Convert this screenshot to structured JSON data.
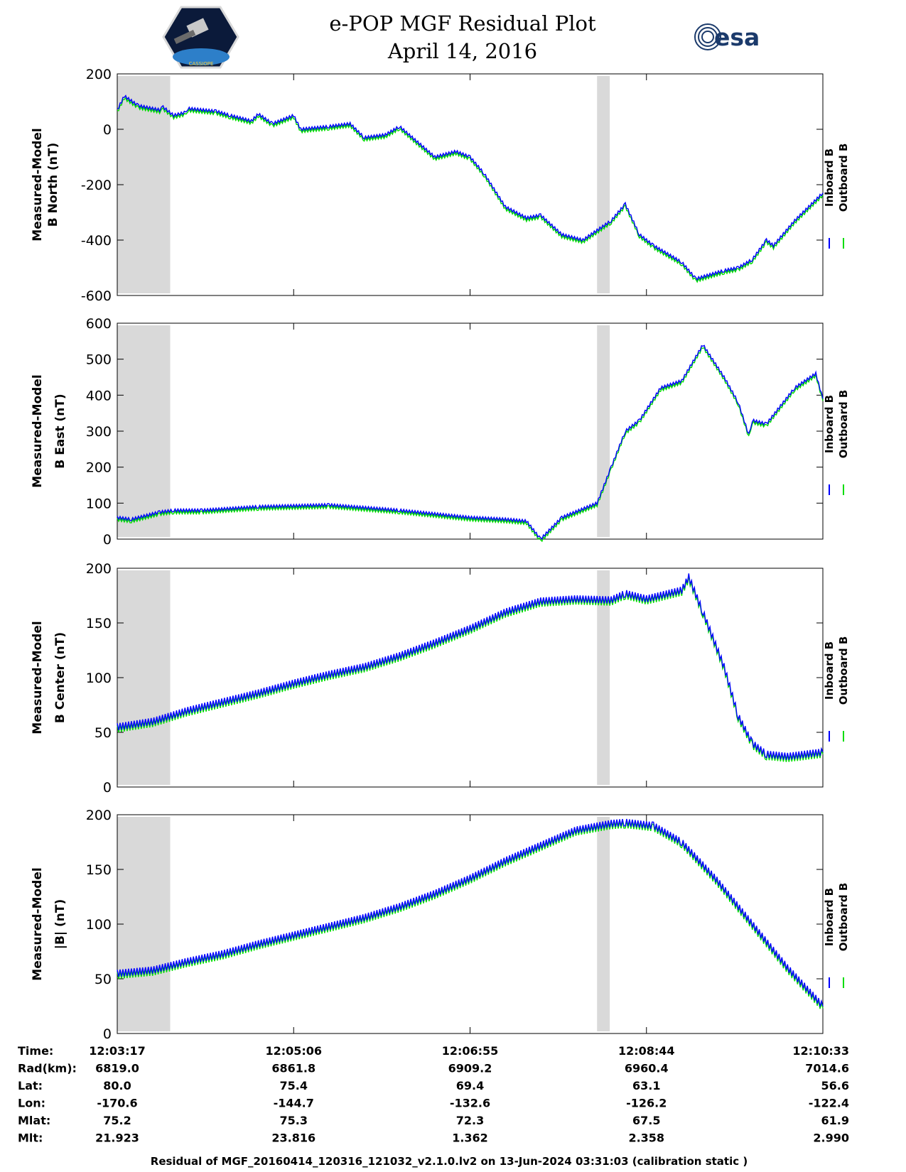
{
  "header": {
    "title_line1": "e-POP MGF Residual Plot",
    "title_line2": "April 14, 2016",
    "logo_left": "CASSIOPE",
    "logo_right": "esa"
  },
  "colors": {
    "inboard": "#0000ff",
    "outboard": "#00dd00",
    "shade": "#d9d9d9"
  },
  "chart_data": [
    {
      "type": "line",
      "ylabel_line1": "Measured-Model",
      "ylabel_line2": "B North (nT)",
      "ylim": [
        -600,
        200
      ],
      "yticks": [
        -600,
        -400,
        -200,
        0,
        200
      ],
      "legend": [
        "Inboard B",
        "Outboard B"
      ],
      "series": [
        {
          "name": "Inboard B",
          "x": [
            0,
            0.01,
            0.03,
            0.06,
            0.065,
            0.08,
            0.095,
            0.1,
            0.14,
            0.16,
            0.19,
            0.2,
            0.22,
            0.25,
            0.26,
            0.3,
            0.33,
            0.35,
            0.38,
            0.4,
            0.45,
            0.48,
            0.5,
            0.52,
            0.55,
            0.58,
            0.6,
            0.63,
            0.66,
            0.7,
            0.72,
            0.74,
            0.76,
            0.8,
            0.82,
            0.86,
            0.88,
            0.9,
            0.92,
            0.93,
            0.96,
            1.0
          ],
          "y": [
            70,
            120,
            85,
            70,
            80,
            50,
            60,
            75,
            65,
            50,
            30,
            55,
            20,
            50,
            0,
            10,
            20,
            -30,
            -20,
            10,
            -100,
            -80,
            -100,
            -160,
            -280,
            -320,
            -310,
            -380,
            -400,
            -330,
            -270,
            -380,
            -420,
            -480,
            -540,
            -510,
            -500,
            -470,
            -400,
            -420,
            -330,
            -230
          ]
        }
      ]
    },
    {
      "type": "line",
      "ylabel_line1": "Measured-Model",
      "ylabel_line2": "B East (nT)",
      "ylim": [
        0,
        600
      ],
      "yticks": [
        0,
        100,
        200,
        300,
        400,
        500,
        600
      ],
      "legend": [
        "Inboard B",
        "Outboard B"
      ],
      "series": [
        {
          "name": "Inboard B",
          "x": [
            0,
            0.02,
            0.06,
            0.08,
            0.12,
            0.2,
            0.3,
            0.4,
            0.45,
            0.5,
            0.55,
            0.58,
            0.6,
            0.61,
            0.63,
            0.68,
            0.7,
            0.72,
            0.74,
            0.77,
            0.8,
            0.83,
            0.86,
            0.88,
            0.895,
            0.9,
            0.92,
            0.96,
            0.99,
            1.0
          ],
          "y": [
            60,
            55,
            75,
            80,
            80,
            90,
            95,
            80,
            70,
            60,
            55,
            50,
            0,
            20,
            60,
            100,
            200,
            300,
            330,
            420,
            440,
            540,
            450,
            380,
            290,
            330,
            320,
            420,
            460,
            390
          ]
        }
      ]
    },
    {
      "type": "line",
      "ylabel_line1": "Measured-Model",
      "ylabel_line2": "B Center (nT)",
      "ylim": [
        0,
        200
      ],
      "yticks": [
        0,
        50,
        100,
        150,
        200
      ],
      "legend": [
        "Inboard B",
        "Outboard B"
      ],
      "series": [
        {
          "name": "Inboard B",
          "x": [
            0,
            0.05,
            0.1,
            0.15,
            0.2,
            0.25,
            0.3,
            0.35,
            0.4,
            0.45,
            0.5,
            0.55,
            0.6,
            0.65,
            0.7,
            0.72,
            0.75,
            0.8,
            0.81,
            0.83,
            0.86,
            0.88,
            0.9,
            0.92,
            0.95,
            1.0
          ],
          "y": [
            55,
            60,
            70,
            78,
            86,
            95,
            103,
            110,
            120,
            132,
            145,
            160,
            170,
            172,
            171,
            177,
            172,
            180,
            192,
            160,
            110,
            65,
            40,
            30,
            28,
            32
          ]
        }
      ]
    },
    {
      "type": "line",
      "ylabel_line1": "Measured-Model",
      "ylabel_line2": "|B| (nT)",
      "ylim": [
        0,
        200
      ],
      "yticks": [
        0,
        50,
        100,
        150,
        200
      ],
      "legend": [
        "Inboard B",
        "Outboard B"
      ],
      "series": [
        {
          "name": "Inboard B",
          "x": [
            0,
            0.05,
            0.1,
            0.15,
            0.2,
            0.25,
            0.3,
            0.35,
            0.4,
            0.45,
            0.5,
            0.55,
            0.6,
            0.65,
            0.7,
            0.72,
            0.76,
            0.8,
            0.85,
            0.9,
            0.95,
            1.0
          ],
          "y": [
            55,
            58,
            66,
            73,
            82,
            90,
            98,
            106,
            116,
            128,
            142,
            158,
            172,
            186,
            192,
            193,
            190,
            175,
            140,
            100,
            60,
            25
          ]
        }
      ]
    }
  ],
  "xaxis": {
    "shaded_regions": [
      [
        0.0,
        0.075
      ],
      [
        0.68,
        0.698
      ]
    ],
    "tick_positions": [
      0,
      0.25,
      0.5,
      0.75,
      1.0
    ]
  },
  "info_table": {
    "rows": [
      {
        "label": "Time:",
        "values": [
          "12:03:17",
          "12:05:06",
          "12:06:55",
          "12:08:44",
          "12:10:33"
        ]
      },
      {
        "label": "Rad(km):",
        "values": [
          "6819.0",
          "6861.8",
          "6909.2",
          "6960.4",
          "7014.6"
        ]
      },
      {
        "label": "Lat:",
        "values": [
          "80.0",
          "75.4",
          "69.4",
          "63.1",
          "56.6"
        ]
      },
      {
        "label": "Lon:",
        "values": [
          "-170.6",
          "-144.7",
          "-132.6",
          "-126.2",
          "-122.4"
        ]
      },
      {
        "label": "Mlat:",
        "values": [
          "75.2",
          "75.3",
          "72.3",
          "67.5",
          "61.9"
        ]
      },
      {
        "label": "Mlt:",
        "values": [
          "21.923",
          "23.816",
          "1.362",
          "2.358",
          "2.990"
        ]
      }
    ]
  },
  "footer": "Residual of MGF_20160414_120316_121032_v2.1.0.lv2 on 13-Jun-2024 03:31:03 (calibration static )"
}
